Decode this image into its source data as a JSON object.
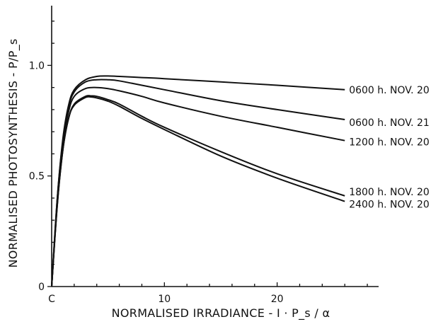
{
  "chart_data": {
    "type": "line",
    "xlabel": "NORMALISED IRRADIANCE - I · P_s / α",
    "ylabel": "NORMALISED PHOTOSYNTHESIS - P/P_s",
    "xlim": [
      0,
      29
    ],
    "ylim": [
      0,
      1.27
    ],
    "x_ticks": [
      {
        "value": 0,
        "label": "C"
      },
      {
        "value": 10,
        "label": "10"
      },
      {
        "value": 20,
        "label": "20"
      }
    ],
    "y_ticks": [
      {
        "value": 0,
        "label": "0"
      },
      {
        "value": 0.5,
        "label": "0.5"
      },
      {
        "value": 1.0,
        "label": "1.0"
      }
    ],
    "grid": false,
    "series": [
      {
        "name": "0600 h. NOV. 20",
        "x": [
          0,
          0.5,
          1,
          1.5,
          2,
          3,
          4,
          5,
          6,
          8,
          10,
          15,
          20,
          26
        ],
        "y": [
          0,
          0.4,
          0.67,
          0.82,
          0.89,
          0.935,
          0.95,
          0.952,
          0.95,
          0.945,
          0.94,
          0.925,
          0.91,
          0.89
        ]
      },
      {
        "name": "0600 h. NOV. 21",
        "x": [
          0,
          0.5,
          1,
          1.5,
          2,
          3,
          4,
          5,
          6,
          8,
          10,
          15,
          20,
          26
        ],
        "y": [
          0,
          0.4,
          0.66,
          0.81,
          0.88,
          0.925,
          0.935,
          0.935,
          0.93,
          0.91,
          0.89,
          0.84,
          0.8,
          0.755
        ]
      },
      {
        "name": "1200 h. NOV. 20",
        "x": [
          0,
          0.5,
          1,
          1.5,
          2,
          3,
          4,
          5,
          6,
          8,
          10,
          15,
          20,
          26
        ],
        "y": [
          0,
          0.38,
          0.64,
          0.79,
          0.86,
          0.895,
          0.9,
          0.895,
          0.885,
          0.86,
          0.83,
          0.77,
          0.72,
          0.66
        ]
      },
      {
        "name": "1800 h. NOV. 20",
        "x": [
          0,
          0.5,
          1,
          1.5,
          2,
          3,
          3.5,
          4,
          5,
          6,
          8,
          10,
          15,
          20,
          26
        ],
        "y": [
          0,
          0.37,
          0.62,
          0.76,
          0.825,
          0.86,
          0.862,
          0.86,
          0.845,
          0.825,
          0.77,
          0.72,
          0.61,
          0.51,
          0.41
        ]
      },
      {
        "name": "2400 h. NOV. 20",
        "x": [
          0,
          0.5,
          1,
          1.5,
          2,
          3,
          3.5,
          4,
          5,
          6,
          8,
          10,
          15,
          20,
          26
        ],
        "y": [
          0,
          0.37,
          0.62,
          0.76,
          0.82,
          0.855,
          0.857,
          0.853,
          0.838,
          0.815,
          0.76,
          0.71,
          0.59,
          0.49,
          0.385
        ]
      }
    ]
  }
}
